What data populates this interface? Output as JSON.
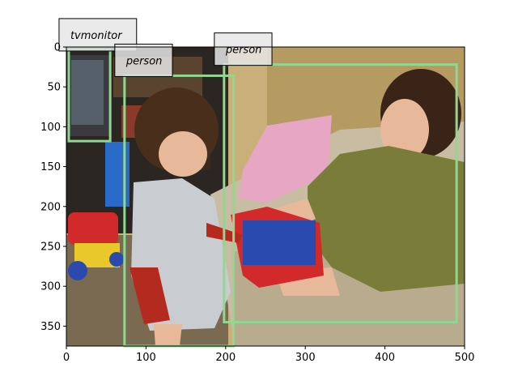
{
  "figure": {
    "xlim": [
      0,
      500
    ],
    "ylim": [
      375,
      0
    ],
    "x_ticks": [
      0,
      100,
      200,
      300,
      400,
      500
    ],
    "y_ticks": [
      0,
      50,
      100,
      150,
      200,
      250,
      300,
      350
    ],
    "box_color": "#90d890",
    "label_bg": "#e6e6e6",
    "detections": [
      {
        "label": "tvmonitor",
        "x1": 3,
        "y1": 4,
        "x2": 55,
        "y2": 118
      },
      {
        "label": "person",
        "x1": 73,
        "y1": 36,
        "x2": 210,
        "y2": 375
      },
      {
        "label": "person",
        "x1": 198,
        "y1": 22,
        "x2": 490,
        "y2": 345
      }
    ]
  },
  "photo": {
    "description_colors": {
      "wall": "#c9b07a",
      "dark_shelf": "#2b2622",
      "sofa": "#c8bca2",
      "carpet": "#7a6a52",
      "child_shirt": "#c9ccd0",
      "child_sleeve": "#b52a1f",
      "child_hair": "#4a2e1c",
      "woman_shirt": "#7a7d3a",
      "woman_hair": "#3a2418",
      "skin": "#e8b89a",
      "pillow": "#e6a6c4",
      "toy_red": "#d22a2a",
      "toy_yellow": "#e8c82a",
      "toy_blue": "#2a4ab0"
    }
  }
}
